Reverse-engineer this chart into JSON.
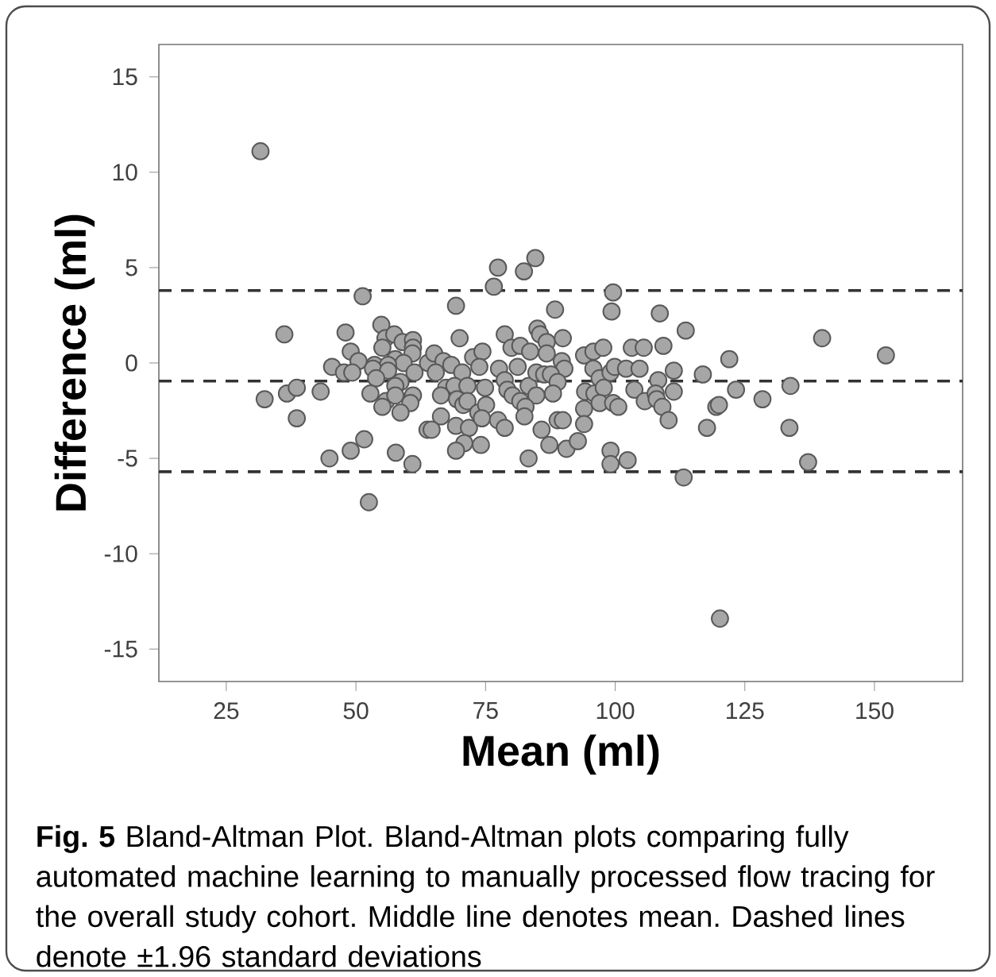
{
  "chart_data": {
    "type": "scatter",
    "xlabel": "Mean (ml)",
    "ylabel": "Difference (ml)",
    "xlim": [
      12,
      167
    ],
    "ylim": [
      -16.7,
      16.7
    ],
    "xticks": [
      25,
      50,
      75,
      100,
      125,
      150
    ],
    "yticks": [
      -15,
      -10,
      -5,
      0,
      5,
      10,
      15
    ],
    "marker": "circle",
    "series": [
      {
        "color": "#a6a6a6",
        "x": [
          31.6,
          51.3,
          36.2,
          48.0,
          54.9,
          49.0,
          50.5,
          45.4,
          47.7,
          49.3,
          32.4,
          36.7,
          38.6,
          43.2,
          38.6,
          44.9,
          49.0,
          51.6,
          52.5,
          57.7,
          60.9,
          55.7,
          57.4,
          55.1,
          59.0,
          61.0,
          61.0,
          60.9,
          57.6,
          59.2,
          53.6,
          56.2,
          53.3,
          56.2,
          61.3,
          53.9,
          58.6,
          57.6,
          52.8,
          61.0,
          55.8,
          57.6,
          55.1,
          60.5,
          58.6,
          63.9,
          63.8,
          69.3,
          70.0,
          76.6,
          77.4,
          82.4,
          84.6,
          88.4,
          78.7,
          85.0,
          85.5,
          86.8,
          89.9,
          80.0,
          81.7,
          83.6,
          86.8,
          89.7,
          90.2,
          65.1,
          66.9,
          68.4,
          65.4,
          72.6,
          74.4,
          73.8,
          70.5,
          67.4,
          69.0,
          71.5,
          74.9,
          66.4,
          69.5,
          70.7,
          71.5,
          73.6,
          75.1,
          66.4,
          64.6,
          69.3,
          71.8,
          74.3,
          70.9,
          69.3,
          74.1,
          77.6,
          78.7,
          79.2,
          81.2,
          80.2,
          81.7,
          83.3,
          84.8,
          86.3,
          87.6,
          88.9,
          88.0,
          84.8,
          82.7,
          82.5,
          77.4,
          78.7,
          85.8,
          88.9,
          89.9,
          87.3,
          83.3,
          90.6,
          92.8,
          94.0,
          94.0,
          94.2,
          94.0,
          95.8,
          97.7,
          95.8,
          97.0,
          96.0,
          97.8,
          97.0,
          99.1,
          99.9,
          99.6,
          100.6,
          99.6,
          99.3,
          99.1,
          99.1,
          102.4,
          102.1,
          103.2,
          105.5,
          104.7,
          103.7,
          105.7,
          108.3,
          107.8,
          108.0,
          109.1,
          110.3,
          108.6,
          109.3,
          111.3,
          111.3,
          113.6,
          113.2,
          116.9,
          122.0,
          123.3,
          119.5,
          120.0,
          117.7,
          128.4,
          133.8,
          133.6,
          137.2,
          139.9,
          152.2,
          120.2
        ],
        "values": [
          11.1,
          3.5,
          1.5,
          1.6,
          2.0,
          0.6,
          0.1,
          -0.2,
          -0.5,
          -0.5,
          -1.9,
          -1.6,
          -1.3,
          -1.5,
          -2.9,
          -5.0,
          -4.6,
          -4.0,
          -7.3,
          -4.7,
          -5.3,
          1.3,
          1.5,
          0.8,
          1.1,
          1.2,
          0.8,
          0.5,
          0.2,
          0.0,
          -0.1,
          -0.1,
          -0.3,
          -0.4,
          -0.5,
          -0.8,
          -1.0,
          -1.2,
          -1.6,
          -1.7,
          -2.0,
          -1.7,
          -2.3,
          -2.1,
          -2.6,
          0.0,
          -3.5,
          3.0,
          1.3,
          4.0,
          5.0,
          4.8,
          5.5,
          2.8,
          1.5,
          1.8,
          1.5,
          1.1,
          1.3,
          0.8,
          0.9,
          0.6,
          0.5,
          0.1,
          -0.3,
          0.5,
          0.1,
          -0.1,
          -0.5,
          0.3,
          0.6,
          -0.2,
          -0.5,
          -1.3,
          -1.2,
          -1.2,
          -1.3,
          -1.7,
          -1.9,
          -2.2,
          -2.0,
          -2.6,
          -2.2,
          -2.8,
          -3.5,
          -3.3,
          -3.4,
          -2.9,
          -4.2,
          -4.6,
          -4.3,
          -0.3,
          -0.9,
          -1.4,
          -0.2,
          -1.7,
          -2.0,
          -1.2,
          -0.5,
          -0.6,
          -0.6,
          -1.0,
          -1.6,
          -1.7,
          -2.3,
          -2.8,
          -3.0,
          -3.4,
          -3.5,
          -3.0,
          -3.0,
          -4.3,
          -5.0,
          -4.5,
          -4.1,
          -2.4,
          -3.2,
          -1.5,
          0.4,
          0.6,
          0.8,
          -0.3,
          -0.8,
          -1.6,
          -1.3,
          -2.1,
          -0.5,
          -0.2,
          -2.1,
          -2.3,
          3.7,
          2.7,
          -4.6,
          -5.3,
          -5.1,
          -0.3,
          0.8,
          0.8,
          -0.3,
          -1.4,
          -2.0,
          -0.9,
          -1.6,
          -1.9,
          -2.3,
          -3.0,
          2.6,
          0.9,
          -0.4,
          -1.5,
          1.7,
          -6.0,
          -0.6,
          0.2,
          -1.4,
          -2.3,
          -2.2,
          -3.4,
          -1.9,
          -1.2,
          -3.4,
          -5.2,
          1.3,
          0.4,
          -13.4
        ]
      }
    ],
    "ref_lines": [
      {
        "axis": "y",
        "value": 3.8,
        "color": "#333333",
        "line_style": "dashed"
      },
      {
        "axis": "y",
        "value": -0.95,
        "color": "#333333",
        "line_style": "dashed"
      },
      {
        "axis": "y",
        "value": -5.7,
        "color": "#333333",
        "line_style": "dashed"
      }
    ],
    "annotations": [
      "**Fig. 5** Bland-Altman Plot. Bland-Altman plots comparing fully automated machine learning to manually processed flow tracing for the overall study cohort. Middle line denotes mean. Dashed lines denote ±1.96 standard deviations"
    ]
  }
}
